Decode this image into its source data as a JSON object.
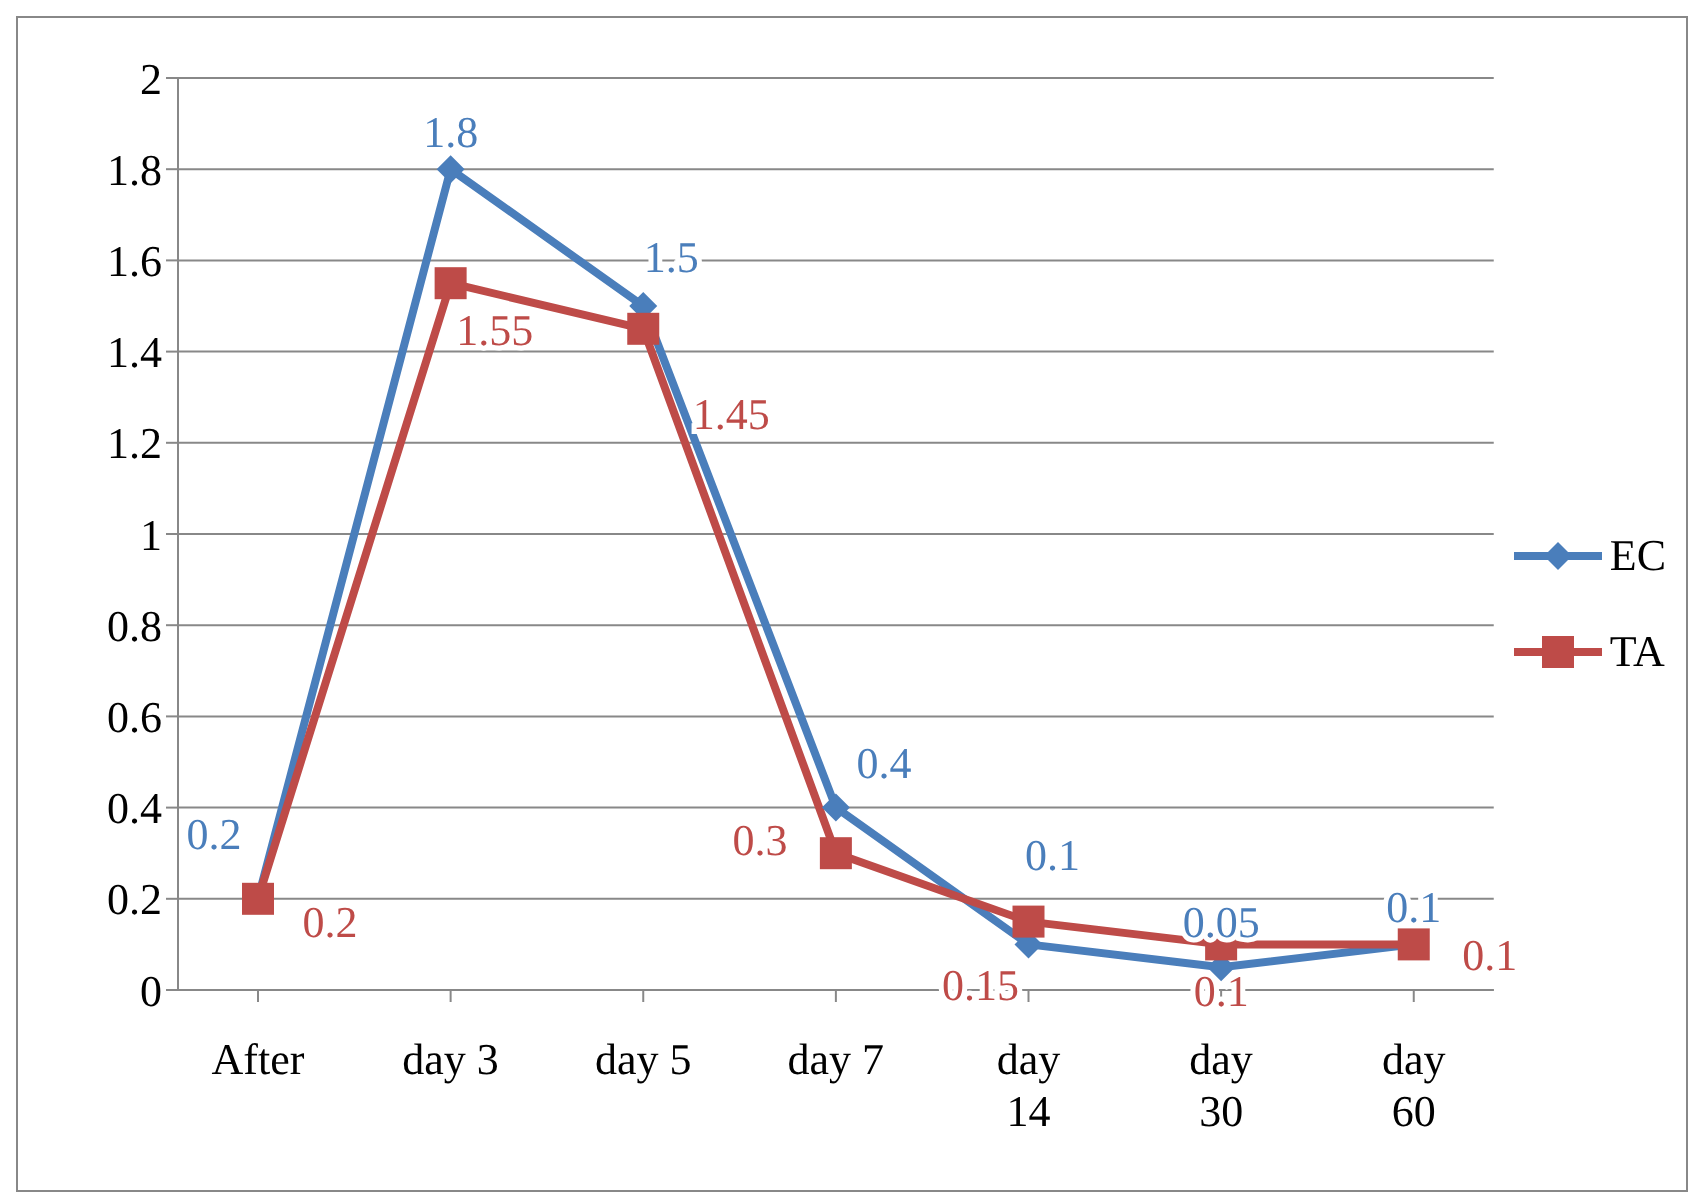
{
  "chart_data": {
    "type": "line",
    "categories": [
      "After",
      "day 3",
      "day 5",
      "day 7",
      "day 14",
      "day 30",
      "day 60"
    ],
    "series": [
      {
        "name": "EC",
        "color": "#4a7ebb",
        "marker": "diamond",
        "values": [
          0.2,
          1.8,
          1.5,
          0.4,
          0.1,
          0.05,
          0.1
        ]
      },
      {
        "name": "TA",
        "color": "#be4b48",
        "marker": "square",
        "values": [
          0.2,
          1.55,
          1.45,
          0.3,
          0.15,
          0.1,
          0.1
        ]
      }
    ],
    "ylim": [
      0,
      2
    ],
    "yticks": [
      0,
      0.2,
      0.4,
      0.6,
      0.8,
      1,
      1.2,
      1.4,
      1.6,
      1.8,
      2
    ],
    "grid": "y",
    "legend": "right",
    "data_labels": true
  }
}
